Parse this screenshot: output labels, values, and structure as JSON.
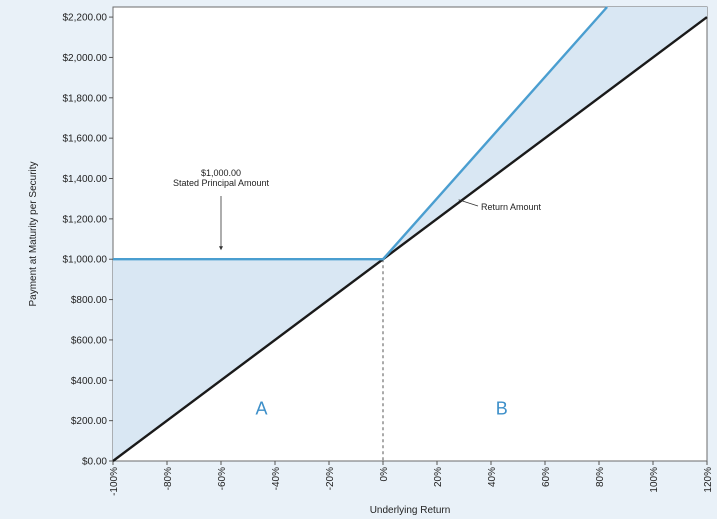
{
  "chart_data": {
    "type": "line",
    "title": "",
    "xlabel": "Underlying Return",
    "ylabel": "Payment at Maturity per Security",
    "xlim": [
      -100,
      120
    ],
    "ylim": [
      0,
      2250
    ],
    "x_ticks": [
      "-100%",
      "-80%",
      "-60%",
      "-40%",
      "-20%",
      "0%",
      "20%",
      "40%",
      "60%",
      "80%",
      "100%",
      "120%"
    ],
    "y_ticks": [
      "$0.00",
      "$200.00",
      "$400.00",
      "$600.00",
      "$800.00",
      "$1,000.00",
      "$1,200.00",
      "$1,400.00",
      "$1,600.00",
      "$1,800.00",
      "$2,000.00",
      "$2,200.00"
    ],
    "grid": false,
    "series": [
      {
        "name": "",
        "color": "#1a1a1a",
        "x": [
          -100,
          120
        ],
        "y": [
          0,
          2200
        ]
      },
      {
        "name": "",
        "color": "#4a9ed0",
        "x": [
          -100,
          0,
          83
        ],
        "y": [
          1000,
          1000,
          2250
        ]
      }
    ],
    "fill_color": "#d9e7f3",
    "reference_line": {
      "x": 0
    },
    "annotations": [
      {
        "lines": [
          "$1,000.00",
          "Stated Principal Amount"
        ],
        "target": [
          -60,
          1000
        ]
      },
      {
        "lines": [
          "Return Amount"
        ],
        "target": [
          28,
          1280
        ]
      }
    ],
    "regions": [
      {
        "label": "A",
        "x": -45,
        "y": 230
      },
      {
        "label": "B",
        "x": 44,
        "y": 230
      }
    ]
  }
}
